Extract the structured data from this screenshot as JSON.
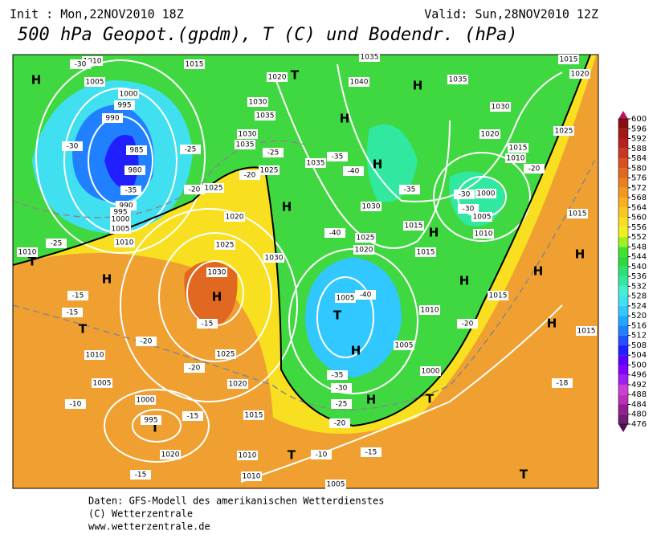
{
  "header": {
    "init": "Init : Mon,22NOV2010 18Z",
    "valid": "Valid: Sun,28NOV2010 12Z",
    "title": "500 hPa Geopot.(gpdm), T (C) und Bodendr. (hPa)"
  },
  "footer": [
    "Daten: GFS-Modell des amerikanischen Wetterdienstes",
    "(C) Wetterzentrale",
    "www.wetterzentrale.de"
  ],
  "colorbar": {
    "levels": [
      476,
      480,
      484,
      488,
      492,
      496,
      500,
      504,
      508,
      512,
      516,
      520,
      524,
      528,
      532,
      536,
      540,
      544,
      548,
      552,
      556,
      560,
      564,
      568,
      572,
      576,
      580,
      584,
      588,
      592,
      596,
      600
    ],
    "colors": [
      "#701c70",
      "#902090",
      "#b830b8",
      "#d040d0",
      "#a020f0",
      "#8000ff",
      "#5a00ff",
      "#2020ff",
      "#2050ff",
      "#2080ff",
      "#20a8ff",
      "#30c8ff",
      "#40e0f0",
      "#40f0d0",
      "#30e8a0",
      "#30e070",
      "#30d840",
      "#40e030",
      "#a0f020",
      "#f0f020",
      "#f8e020",
      "#f8c820",
      "#f8b020",
      "#f09820",
      "#e88020",
      "#e06820",
      "#d85020",
      "#c83820",
      "#b82020",
      "#a01818",
      "#881010"
    ],
    "below_color": "#501050",
    "above_color": "#c01060"
  },
  "pressure_centers": [
    "H",
    "H",
    "H",
    "H",
    "H",
    "H",
    "H",
    "H",
    "H",
    "H",
    "H",
    "H",
    "H",
    "H",
    "T",
    "T",
    "T",
    "T",
    "T",
    "T",
    "T",
    "T",
    "T"
  ],
  "isobar_labels": [
    1010,
    1015,
    1005,
    1000,
    995,
    990,
    985,
    980,
    990,
    995,
    1000,
    1005,
    1010,
    1020,
    1030,
    1035,
    1030,
    1035,
    1025,
    1025,
    1020,
    1025,
    1030,
    1030,
    1035,
    1040,
    1035,
    1035,
    1030,
    1025,
    1020,
    1015,
    1010,
    1020,
    1015,
    1000,
    1005,
    1010,
    1015,
    1015,
    1025,
    1020,
    1030,
    1005,
    1010,
    1005,
    1000,
    1015,
    1015,
    1015,
    1020,
    1010,
    1005,
    1000,
    995,
    1015,
    1020,
    1025,
    1010,
    1010,
    1005,
    1010
  ],
  "temperature_labels": [
    -30,
    -30,
    -25,
    -35,
    -25,
    -20,
    -25,
    -20,
    -35,
    -40,
    -35,
    -30,
    -30,
    -20,
    -40,
    -40,
    -20,
    -15,
    -15,
    -20,
    -15,
    -15,
    -10,
    -35,
    -30,
    -25,
    -20,
    -15,
    -15,
    -10,
    -20,
    -18
  ]
}
